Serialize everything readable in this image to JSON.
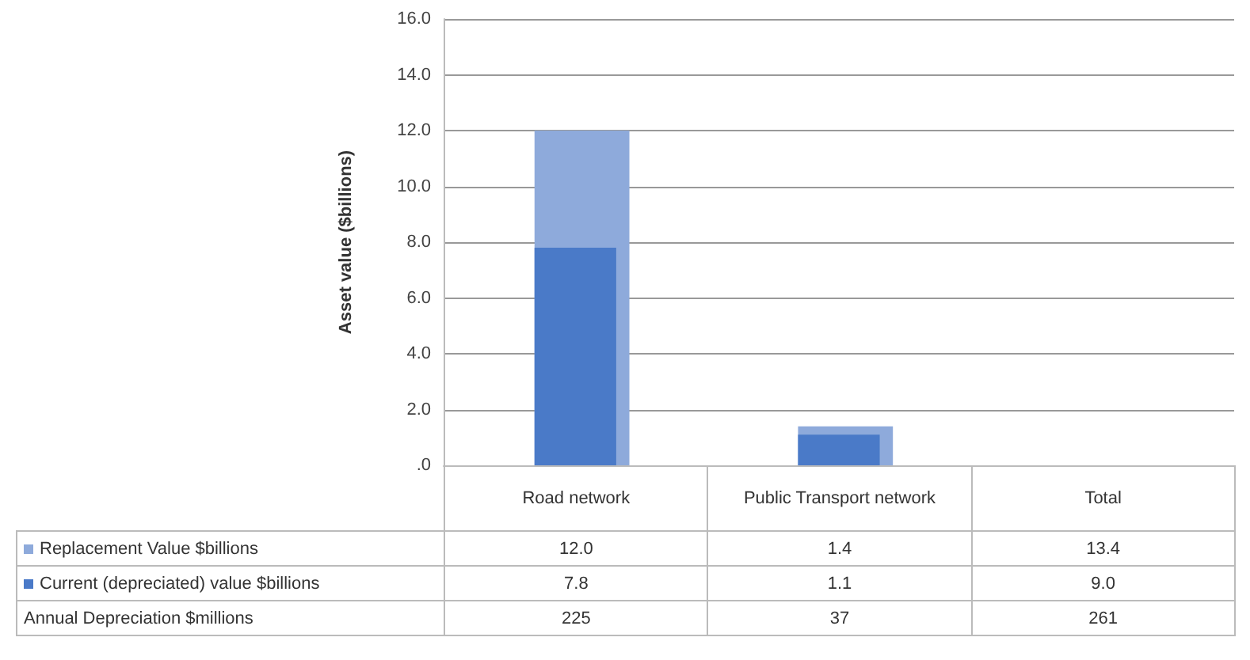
{
  "chart_data": {
    "type": "bar",
    "ylabel": "Asset value ($billions)",
    "categories": [
      "Road network",
      "Public Transport network",
      "Total"
    ],
    "series": [
      {
        "name": "Replacement Value $billions",
        "color": "#8eaadb",
        "values": [
          12.0,
          1.4,
          null
        ],
        "value_labels": [
          "12.0",
          "1.4",
          "13.4"
        ]
      },
      {
        "name": "Current (depreciated) value $billions",
        "color": "#4a7ac8",
        "values": [
          7.8,
          1.1,
          null
        ],
        "value_labels": [
          "7.8",
          "1.1",
          "9.0"
        ]
      },
      {
        "name": "Annual Depreciation $millions",
        "values": [
          null,
          null,
          null
        ],
        "value_labels": [
          "225",
          "37",
          "261"
        ]
      }
    ],
    "ylim": [
      0,
      16
    ],
    "yticks": [
      {
        "value": 0,
        "label": ".0"
      },
      {
        "value": 2,
        "label": "2.0"
      },
      {
        "value": 4,
        "label": "4.0"
      },
      {
        "value": 6,
        "label": "6.0"
      },
      {
        "value": 8,
        "label": "8.0"
      },
      {
        "value": 10,
        "label": "10.0"
      },
      {
        "value": 12,
        "label": "12.0"
      },
      {
        "value": 14,
        "label": "14.0"
      },
      {
        "value": 16,
        "label": "16.0"
      }
    ],
    "grid": "y",
    "legend": "bottom"
  }
}
